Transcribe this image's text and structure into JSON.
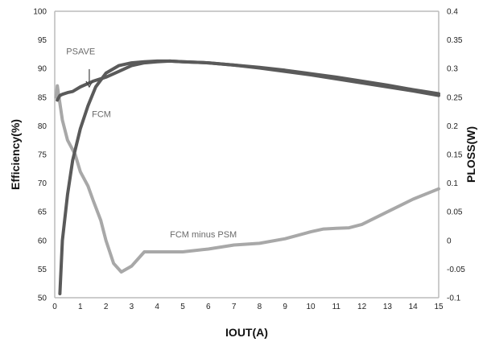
{
  "chart_data": {
    "type": "line",
    "title": "",
    "xlabel": "IOUT(A)",
    "ylabel_left": "Efficiency(%)",
    "ylabel_right": "PLOSS(W)",
    "xlim": [
      0,
      15
    ],
    "ylim_left": [
      50,
      100
    ],
    "ylim_right": [
      -0.1,
      0.4
    ],
    "x_ticks": [
      "0",
      "1",
      "2",
      "3",
      "4",
      "5",
      "6",
      "7",
      "8",
      "9",
      "10",
      "11",
      "12",
      "13",
      "14",
      "15"
    ],
    "y_left_ticks": [
      "50",
      "55",
      "60",
      "65",
      "70",
      "75",
      "80",
      "85",
      "90",
      "95",
      "100"
    ],
    "y_right_ticks": [
      "-0.1",
      "-0.05",
      "0",
      "0.05",
      "0.1",
      "0.15",
      "0.2",
      "0.25",
      "0.3",
      "0.35",
      "0.4"
    ],
    "grid": false,
    "colors": {
      "efficiency_psave": "#5a5a5a",
      "efficiency_fcm": "#5a5a5a",
      "loss_difference": "#a8a8a8",
      "axis": "#bbbbbb",
      "annotation": "#6a6a6a"
    },
    "series": [
      {
        "axis": "left",
        "x": [
          0.1,
          0.2,
          0.3,
          0.5,
          0.7,
          1.0,
          1.5,
          2.0,
          2.5,
          3.0,
          3.5,
          4.0,
          4.5,
          5,
          6,
          7,
          8,
          9,
          10,
          11,
          12,
          13,
          14,
          15
        ],
        "y": [
          84.5,
          85.3,
          85.5,
          85.8,
          86.0,
          86.8,
          87.8,
          88.5,
          89.5,
          90.5,
          91.0,
          91.2,
          91.3,
          91.2,
          91.0,
          90.6,
          90.1,
          89.5,
          88.9,
          88.2,
          87.5,
          86.8,
          86.1,
          85.3
        ]
      },
      {
        "axis": "left",
        "x": [
          0.2,
          0.3,
          0.5,
          0.7,
          1.0,
          1.3,
          1.6,
          2.0,
          2.5,
          3.0,
          3.5,
          4.0,
          4.5,
          5,
          6,
          7,
          8,
          9,
          10,
          11,
          12,
          13,
          14,
          15
        ],
        "y": [
          50.7,
          60.0,
          68.0,
          74.0,
          79.5,
          83.5,
          86.8,
          89.2,
          90.5,
          91.0,
          91.2,
          91.3,
          91.3,
          91.2,
          91.0,
          90.6,
          90.2,
          89.7,
          89.1,
          88.5,
          87.8,
          87.1,
          86.3,
          85.6
        ]
      },
      {
        "axis": "right",
        "x": [
          0.05,
          0.1,
          0.3,
          0.5,
          0.8,
          1.0,
          1.3,
          1.5,
          1.8,
          2.0,
          2.3,
          2.6,
          3.0,
          3.5,
          4.0,
          5.0,
          6.0,
          7.0,
          8.0,
          9.0,
          10.0,
          10.5,
          11.0,
          11.5,
          12.0,
          13.0,
          14.0,
          15.0
        ],
        "y": [
          0.25,
          0.27,
          0.21,
          0.175,
          0.15,
          0.12,
          0.095,
          0.07,
          0.035,
          0.0,
          -0.04,
          -0.055,
          -0.045,
          -0.02,
          -0.02,
          -0.02,
          -0.015,
          -0.008,
          -0.005,
          0.003,
          0.015,
          0.02,
          0.021,
          0.022,
          0.028,
          0.05,
          0.072,
          0.09
        ]
      }
    ],
    "annotations": {
      "psave": "PSAVE",
      "fcm": "FCM",
      "fcm_minus_psm": "FCM minus PSM"
    },
    "annotation_arrow": {
      "from": {
        "x": 1.35,
        "y": 89.9
      },
      "to": {
        "x": 1.35,
        "y": 86.8
      }
    },
    "annotation_anchors": {
      "psave": {
        "x": 0.45,
        "y": 92.5
      },
      "fcm": {
        "x": 1.45,
        "y": 81.5
      },
      "fcm_minus_psm": {
        "x": 4.5,
        "y": 0.0
      }
    }
  }
}
